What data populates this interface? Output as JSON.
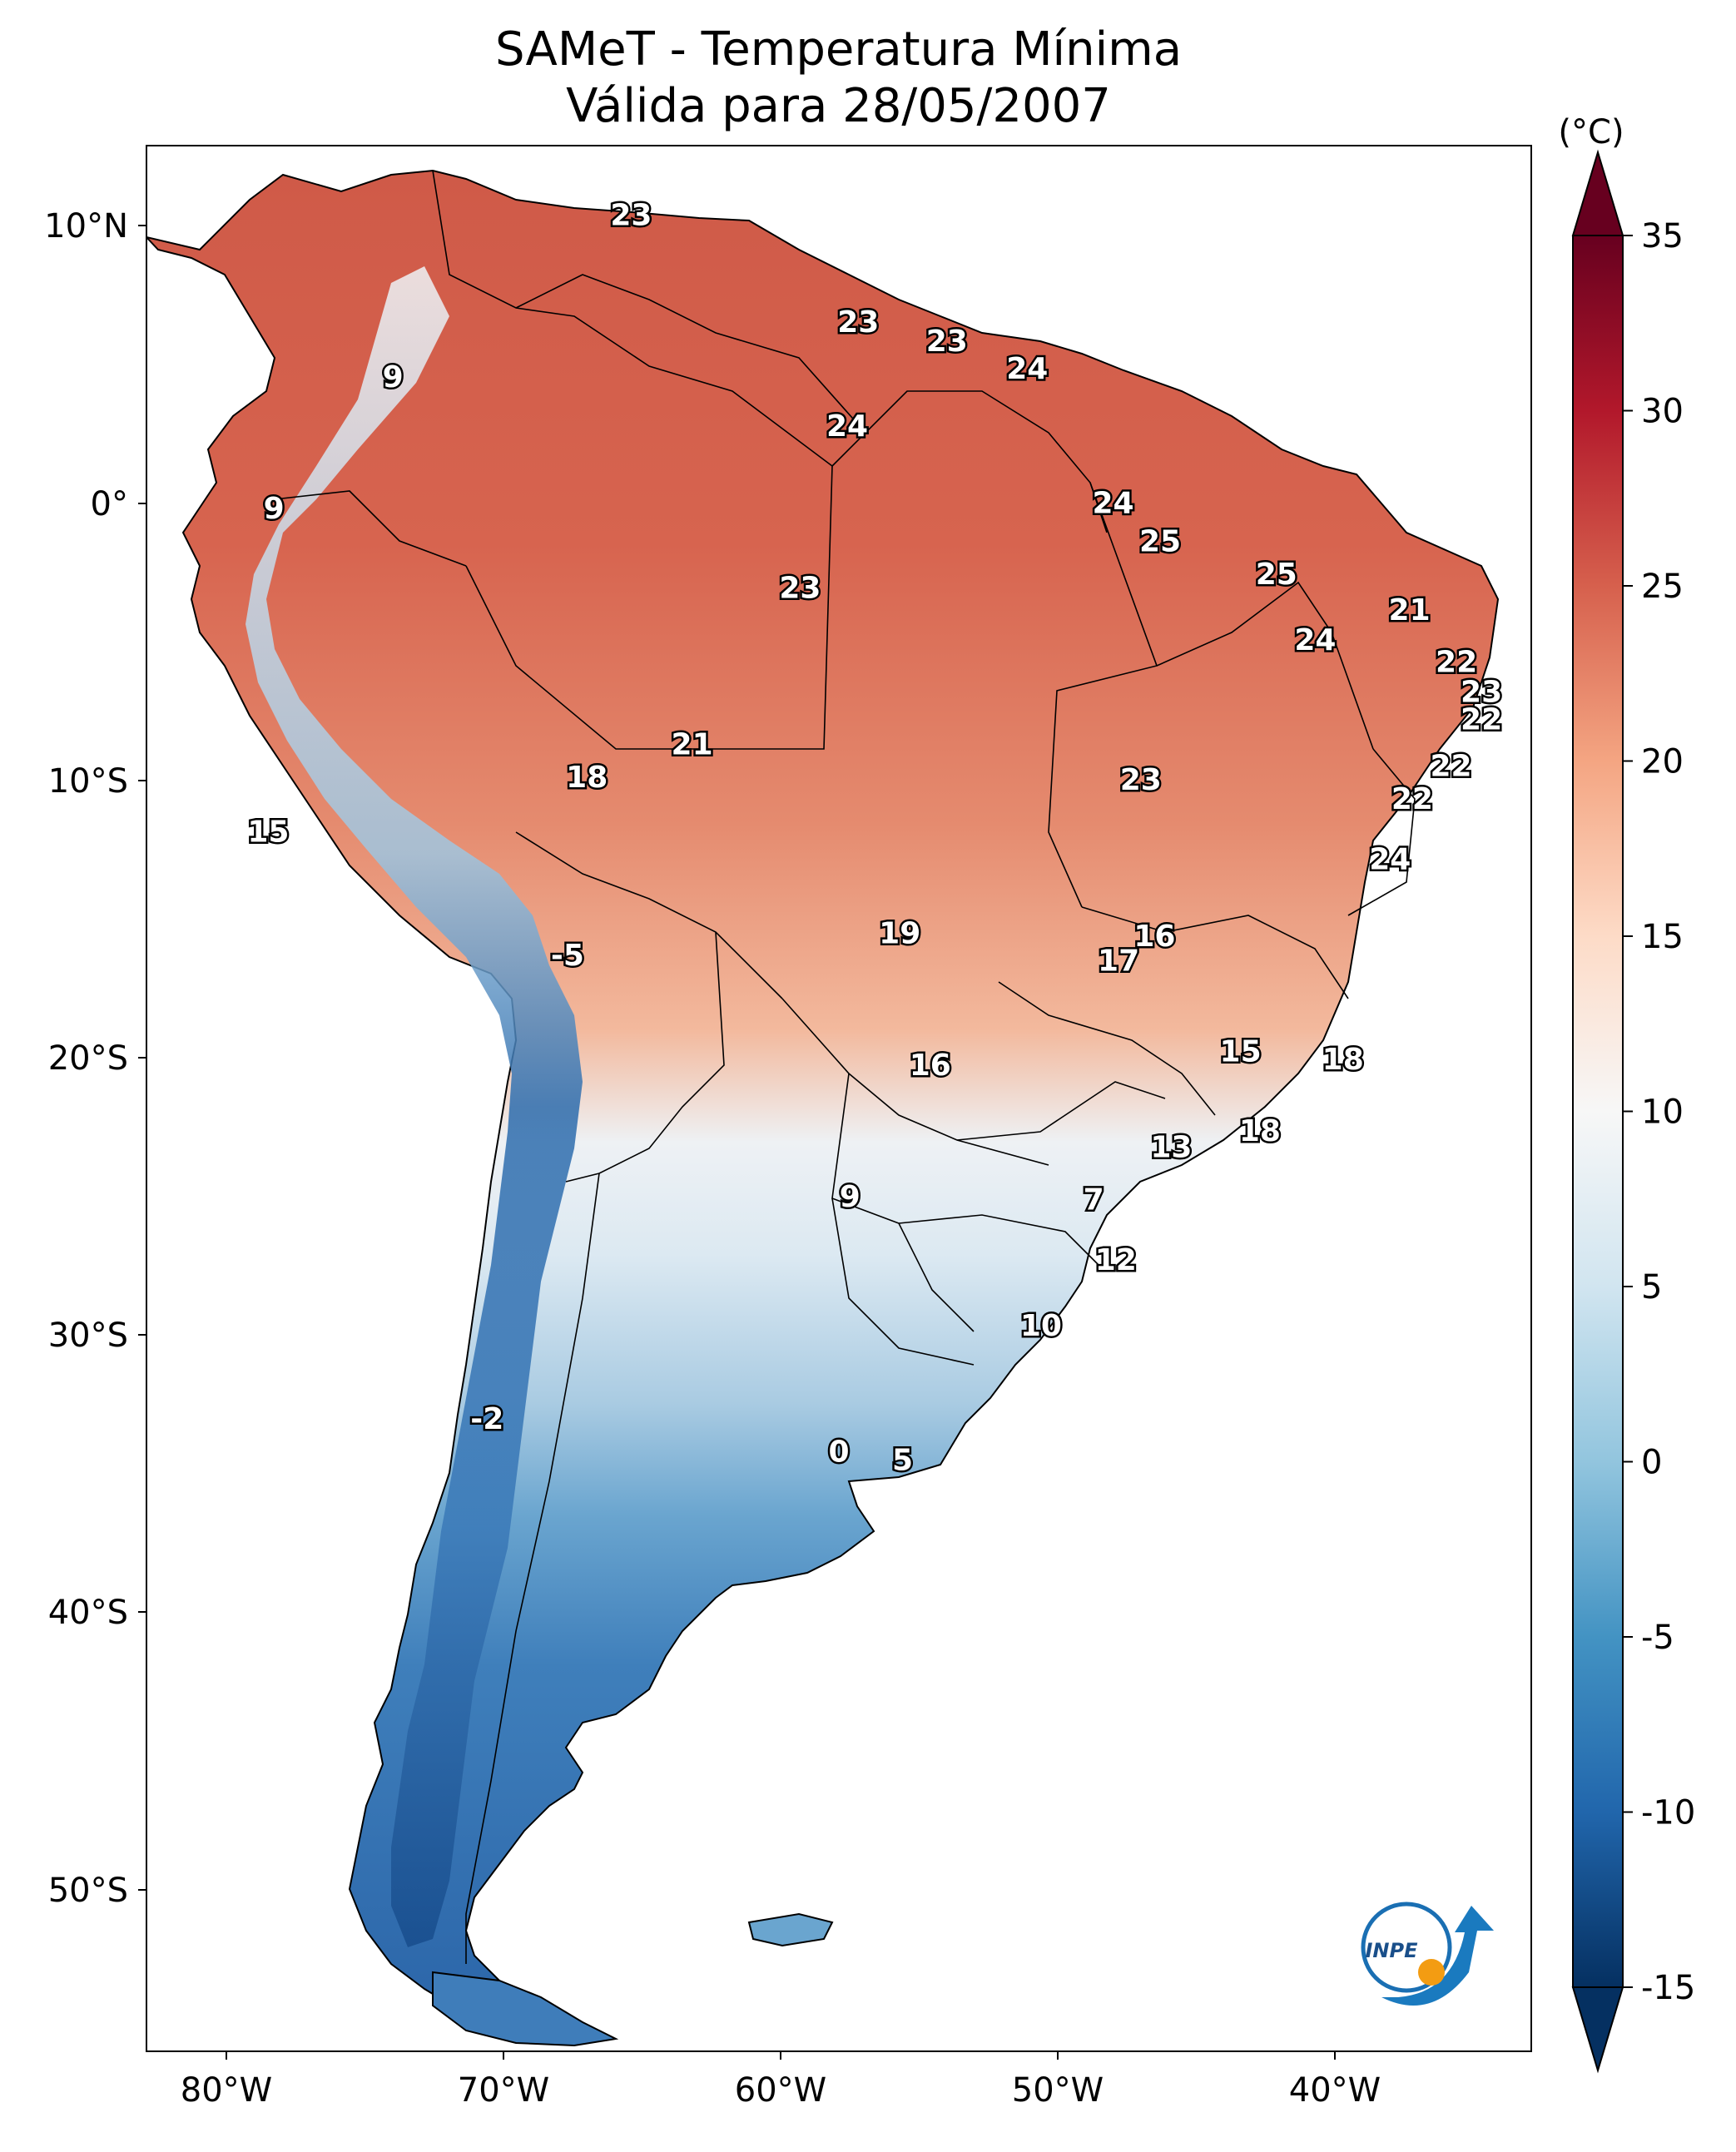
{
  "title": {
    "line1": "SAMeT - Temperatura Mínima",
    "line2": "Válida para 28/05/2007"
  },
  "map": {
    "region": "South America",
    "variable": "Temperatura Mínima",
    "lon_ticks": [
      "80°W",
      "70°W",
      "60°W",
      "50°W",
      "40°W"
    ],
    "lat_ticks": [
      "10°N",
      "0°",
      "10°S",
      "20°S",
      "30°S",
      "40°S",
      "50°S"
    ],
    "lon_range": [
      -83.5,
      -33.5
    ],
    "lat_range": [
      -56.5,
      13
    ],
    "point_labels": [
      {
        "lon": -66.0,
        "lat": 10.5,
        "text": "23"
      },
      {
        "lon": -57.8,
        "lat": 6.6,
        "text": "23"
      },
      {
        "lon": -54.6,
        "lat": 5.9,
        "text": "23"
      },
      {
        "lon": -51.7,
        "lat": 4.9,
        "text": "24"
      },
      {
        "lon": -58.2,
        "lat": 2.8,
        "text": "24"
      },
      {
        "lon": -74.6,
        "lat": 4.6,
        "text": "9"
      },
      {
        "lon": -78.9,
        "lat": -0.2,
        "text": "9"
      },
      {
        "lon": -48.6,
        "lat": 0.0,
        "text": "24"
      },
      {
        "lon": -46.9,
        "lat": -1.4,
        "text": "25"
      },
      {
        "lon": -42.7,
        "lat": -2.6,
        "text": "25"
      },
      {
        "lon": -59.9,
        "lat": -3.1,
        "text": "23"
      },
      {
        "lon": -37.9,
        "lat": -3.9,
        "text": "21"
      },
      {
        "lon": -41.3,
        "lat": -5.0,
        "text": "24"
      },
      {
        "lon": -36.2,
        "lat": -5.8,
        "text": "22"
      },
      {
        "lon": -35.3,
        "lat": -6.9,
        "text": "23"
      },
      {
        "lon": -35.3,
        "lat": -7.9,
        "text": "22"
      },
      {
        "lon": -36.4,
        "lat": -9.6,
        "text": "22"
      },
      {
        "lon": -37.8,
        "lat": -10.8,
        "text": "22"
      },
      {
        "lon": -47.6,
        "lat": -10.1,
        "text": "23"
      },
      {
        "lon": -63.8,
        "lat": -8.8,
        "text": "21"
      },
      {
        "lon": -67.6,
        "lat": -10.0,
        "text": "18"
      },
      {
        "lon": -79.1,
        "lat": -12.0,
        "text": "15"
      },
      {
        "lon": -38.6,
        "lat": -13.0,
        "text": "24"
      },
      {
        "lon": -56.3,
        "lat": -15.7,
        "text": "19"
      },
      {
        "lon": -47.1,
        "lat": -15.8,
        "text": "16"
      },
      {
        "lon": -48.4,
        "lat": -16.7,
        "text": "17"
      },
      {
        "lon": -68.3,
        "lat": -16.5,
        "text": "-5"
      },
      {
        "lon": -55.2,
        "lat": -20.5,
        "text": "16"
      },
      {
        "lon": -44.0,
        "lat": -20.0,
        "text": "15"
      },
      {
        "lon": -40.3,
        "lat": -20.3,
        "text": "18"
      },
      {
        "lon": -46.5,
        "lat": -23.5,
        "text": "13"
      },
      {
        "lon": -43.3,
        "lat": -22.9,
        "text": "18"
      },
      {
        "lon": -58.1,
        "lat": -25.3,
        "text": "9"
      },
      {
        "lon": -49.3,
        "lat": -25.4,
        "text": "7"
      },
      {
        "lon": -48.5,
        "lat": -27.6,
        "text": "12"
      },
      {
        "lon": -51.2,
        "lat": -30.0,
        "text": "10"
      },
      {
        "lon": -71.2,
        "lat": -33.4,
        "text": "-2"
      },
      {
        "lon": -58.5,
        "lat": -34.6,
        "text": "0"
      },
      {
        "lon": -56.2,
        "lat": -34.9,
        "text": "5"
      }
    ]
  },
  "colorbar": {
    "unit": "(°C)",
    "ticks": [
      "35",
      "30",
      "25",
      "20",
      "15",
      "10",
      "5",
      "0",
      "-5",
      "-10",
      "-15"
    ],
    "vmin": -15,
    "vmax": 35,
    "colors": [
      "#053061",
      "#2166ac",
      "#4393c3",
      "#92c5de",
      "#d1e5f0",
      "#f7f7f7",
      "#fddbc7",
      "#f4a582",
      "#d6604d",
      "#b2182b",
      "#67001f"
    ]
  },
  "logo": {
    "text": "INPE"
  }
}
